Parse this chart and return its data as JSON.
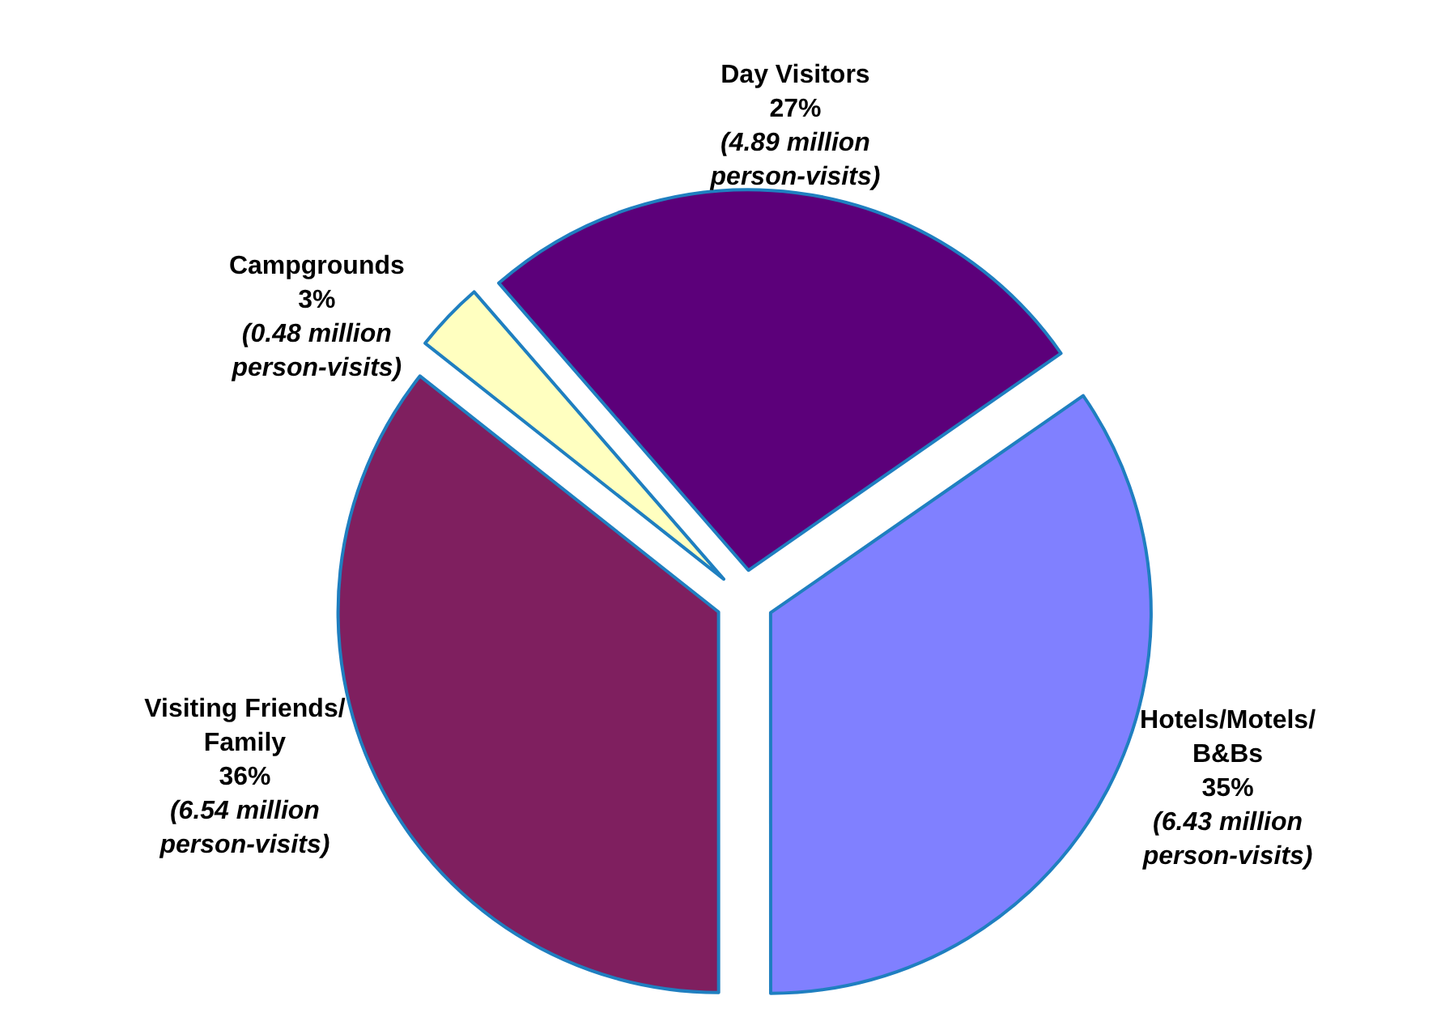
{
  "chart_data": {
    "type": "pie",
    "categories": [
      "Day Visitors",
      "Hotels/Motels/B&Bs",
      "Visiting Friends/Family",
      "Campgrounds"
    ],
    "values": [
      27,
      35,
      36,
      3
    ],
    "colors": [
      "#5c007a",
      "#8080ff",
      "#7f1f5f",
      "#ffffc0"
    ],
    "value_labels": [
      "27%",
      "35%",
      "36%",
      "3%"
    ],
    "annotations": [
      "(4.89 million person-visits)",
      "(6.43 million person-visits)",
      "(6.54 million person-visits)",
      "(0.48 million person-visits)"
    ]
  }
}
